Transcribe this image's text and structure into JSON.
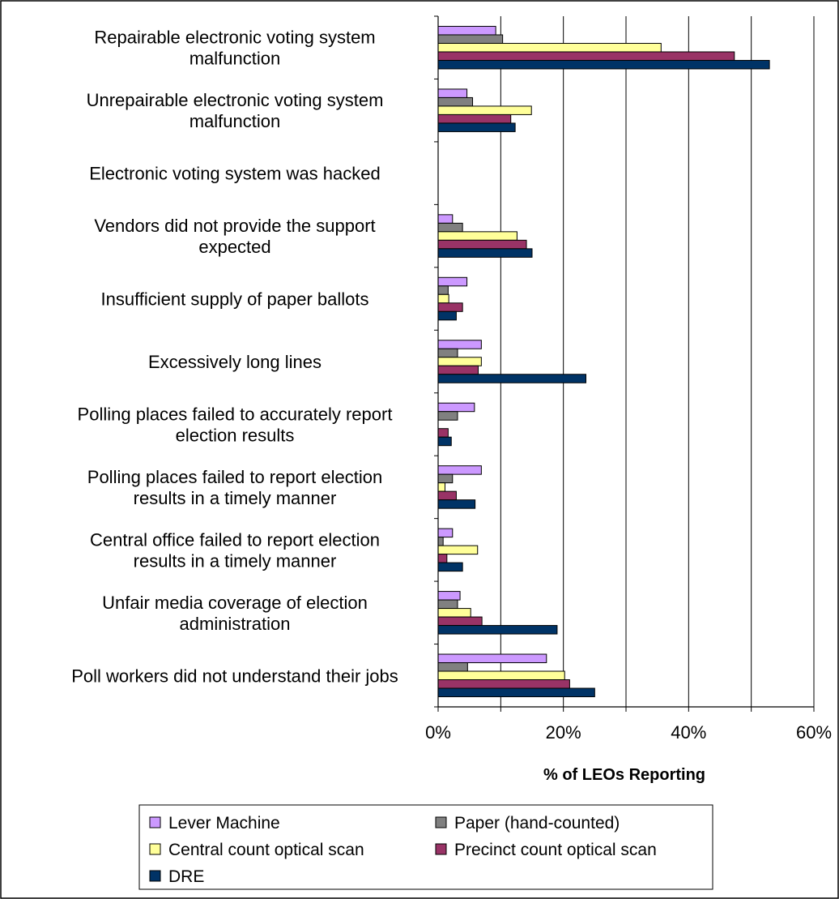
{
  "chart_data": {
    "type": "bar",
    "orientation": "horizontal",
    "title": "",
    "xlabel": "% of LEOs Reporting",
    "ylabel": "",
    "xlim": [
      0,
      60
    ],
    "xticks": [
      "0%",
      "20%",
      "40%",
      "60%"
    ],
    "grid": "vertical",
    "legend_position": "bottom",
    "categories": [
      [
        "Repairable electronic voting system",
        "malfunction"
      ],
      [
        "Unrepairable electronic voting system",
        "malfunction"
      ],
      [
        "Electronic voting system was hacked"
      ],
      [
        "Vendors did not provide the support",
        "expected"
      ],
      [
        "Insufficient supply of paper ballots"
      ],
      [
        "Excessively long lines"
      ],
      [
        "Polling places failed to accurately report",
        "election results"
      ],
      [
        "Polling places failed to report election",
        "results in a timely manner"
      ],
      [
        "Central office failed to report election",
        "results in a timely manner"
      ],
      [
        "Unfair media coverage of election",
        "administration"
      ],
      [
        "Poll workers did not understand their jobs"
      ]
    ],
    "series": [
      {
        "name": "Lever Machine",
        "color": "#CC99FF",
        "values": [
          9.2,
          4.6,
          0,
          2.3,
          4.6,
          6.9,
          5.8,
          6.9,
          2.3,
          3.5,
          17.3
        ]
      },
      {
        "name": "Paper (hand-counted)",
        "color": "#808080",
        "values": [
          10.3,
          5.5,
          0,
          3.9,
          1.6,
          3.1,
          3.1,
          2.3,
          0.8,
          3.1,
          4.7
        ]
      },
      {
        "name": "Central count optical scan",
        "color": "#FFFF99",
        "values": [
          35.6,
          14.9,
          0,
          12.6,
          1.7,
          6.9,
          0,
          1.1,
          6.3,
          5.2,
          20.2
        ]
      },
      {
        "name": "Precinct count optical scan",
        "color": "#993366",
        "values": [
          47.3,
          11.6,
          0,
          14.1,
          3.9,
          6.4,
          1.6,
          2.9,
          1.4,
          7.0,
          21.0
        ]
      },
      {
        "name": "DRE",
        "color": "#003366",
        "values": [
          52.9,
          12.3,
          0,
          15.0,
          2.9,
          23.6,
          2.1,
          5.9,
          3.9,
          19.0,
          25.0
        ]
      }
    ]
  }
}
